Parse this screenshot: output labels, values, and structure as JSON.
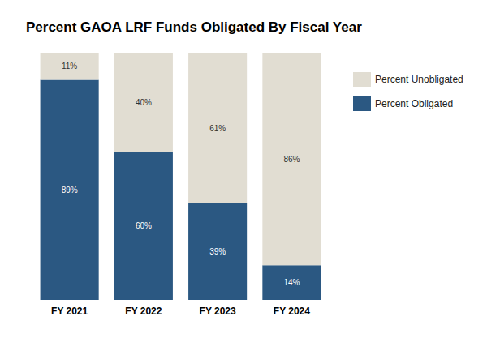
{
  "chart_data": {
    "type": "bar",
    "title": "Percent GAOA LRF Funds Obligated By Fiscal Year",
    "categories": [
      "FY 2021",
      "FY 2022",
      "FY 2023",
      "FY 2024"
    ],
    "series": [
      {
        "name": "Percent Obligated",
        "color": "#2b5882",
        "values": [
          89,
          60,
          39,
          14
        ],
        "value_labels": [
          "89%",
          "60%",
          "39%",
          "14%"
        ]
      },
      {
        "name": "Percent Unobligated",
        "color": "#e1ddd2",
        "values": [
          11,
          40,
          61,
          86
        ],
        "value_labels": [
          "11%",
          "40%",
          "61%",
          "86%"
        ]
      }
    ],
    "ylim": [
      0,
      100
    ],
    "stacked": true,
    "data_labels": true,
    "grid": false,
    "legend": "upper right",
    "tick_labels": "x"
  }
}
